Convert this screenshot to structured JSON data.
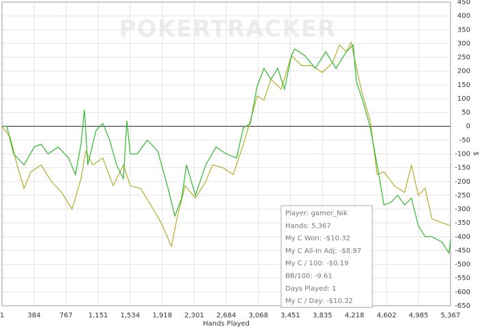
{
  "chart_data": {
    "type": "line",
    "watermark": "POKERTRACKER",
    "x_label": "Hands Played",
    "y_label": "$",
    "xlim": [
      1,
      5367
    ],
    "ylim": [
      -650,
      450
    ],
    "xticks": [
      1,
      384,
      767,
      {
        "value": 1151,
        "label": "1,151"
      },
      {
        "value": 1534,
        "label": "1,534"
      },
      {
        "value": 1918,
        "label": "1,918"
      },
      {
        "value": 2301,
        "label": "2,301"
      },
      {
        "value": 2684,
        "label": "2,684"
      },
      {
        "value": 3068,
        "label": "3,068"
      },
      {
        "value": 3451,
        "label": "3,451"
      },
      {
        "value": 3835,
        "label": "3,835"
      },
      {
        "value": 4218,
        "label": "4,218"
      },
      {
        "value": 4602,
        "label": "4,602"
      },
      {
        "value": 4985,
        "label": "4,985"
      },
      {
        "value": 5367,
        "label": "5,367"
      }
    ],
    "yticks": [
      450,
      400,
      350,
      300,
      250,
      200,
      150,
      100,
      50,
      0,
      -50,
      -100,
      -150,
      -200,
      -250,
      -300,
      -350,
      -400,
      -450,
      -500,
      -550,
      -600,
      -650
    ],
    "grid": true,
    "zero_line": true,
    "series": [
      {
        "name": "My C Won",
        "color": "#2db82d",
        "x": [
          1,
          58,
          140,
          264,
          387,
          469,
          551,
          674,
          797,
          879,
          945,
          986,
          1027,
          1125,
          1207,
          1289,
          1371,
          1453,
          1494,
          1535,
          1617,
          1740,
          1864,
          1987,
          2069,
          2151,
          2208,
          2315,
          2438,
          2561,
          2684,
          2807,
          2889,
          2971,
          3053,
          3135,
          3217,
          3299,
          3381,
          3463,
          3504,
          3627,
          3750,
          3874,
          3997,
          4120,
          4202,
          4243,
          4325,
          4407,
          4489,
          4571,
          4653,
          4735,
          4817,
          4899,
          4981,
          5063,
          5145,
          5268,
          5350,
          5367
        ],
        "values": [
          0,
          0,
          -100,
          -140,
          -75,
          -65,
          -100,
          -75,
          -115,
          -175,
          -65,
          60,
          -140,
          -15,
          10,
          -50,
          -140,
          -190,
          20,
          -100,
          -100,
          -50,
          -90,
          -225,
          -325,
          -260,
          -140,
          -250,
          -140,
          -75,
          -100,
          -115,
          -5,
          10,
          145,
          210,
          170,
          210,
          135,
          255,
          280,
          255,
          210,
          270,
          210,
          270,
          295,
          160,
          85,
          -5,
          -140,
          -285,
          -275,
          -250,
          -285,
          -260,
          -360,
          -400,
          -400,
          -420,
          -460,
          -410
        ]
      },
      {
        "name": "My C All-In Adj",
        "color": "#b5ac2a",
        "x": [
          1,
          99,
          181,
          264,
          346,
          469,
          592,
          715,
          838,
          945,
          1002,
          1084,
          1207,
          1330,
          1453,
          1535,
          1658,
          1781,
          1905,
          2028,
          2093,
          2192,
          2315,
          2438,
          2520,
          2643,
          2766,
          2889,
          2996,
          3053,
          3135,
          3217,
          3340,
          3463,
          3586,
          3709,
          3832,
          3956,
          4038,
          4120,
          4177,
          4243,
          4309,
          4407,
          4489,
          4571,
          4694,
          4817,
          4899,
          4981,
          5063,
          5145,
          5268,
          5367
        ],
        "values": [
          0,
          -40,
          -140,
          -225,
          -165,
          -140,
          -200,
          -240,
          -300,
          -190,
          -90,
          -140,
          -115,
          -215,
          -140,
          -215,
          -225,
          -285,
          -350,
          -435,
          -335,
          -215,
          -260,
          -200,
          -140,
          -150,
          -175,
          -65,
          45,
          110,
          95,
          170,
          135,
          255,
          220,
          220,
          195,
          230,
          295,
          270,
          305,
          210,
          120,
          20,
          -175,
          -165,
          -215,
          -240,
          -140,
          -250,
          -225,
          -335,
          -350,
          -360
        ]
      }
    ],
    "annotations": [
      "Player: gamer_Nik",
      "Hands: 5,367",
      "My C Won: -$10.32",
      "My C All-In Adj: -$8.97",
      "My C / 100: -$0.19",
      "BB/100: -9.61",
      "Days Played: 1",
      "My C / Day: -$10.32"
    ]
  }
}
